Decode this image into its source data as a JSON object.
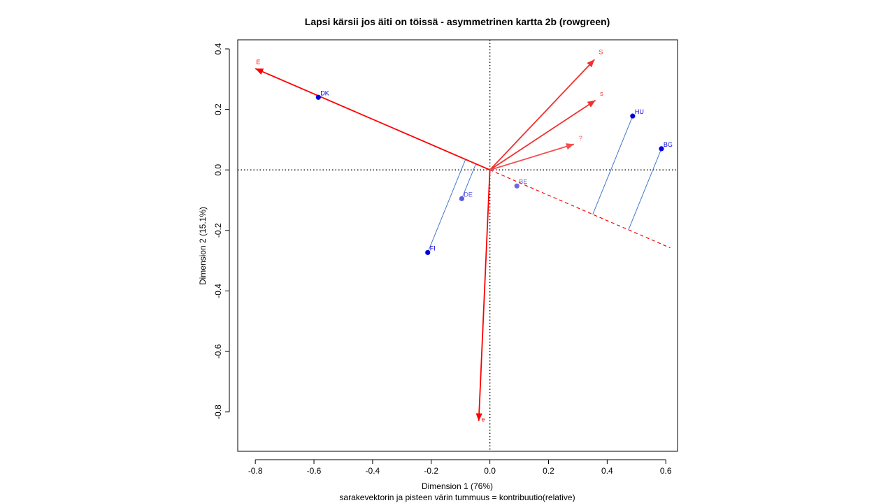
{
  "chart_data": {
    "type": "scatter",
    "title": "Lapsi kärsii jos äiti on töissä - asymmetrinen kartta 2b (rowgreen)",
    "xlabel": "Dimension 1 (76%)",
    "ylabel": "Dimension 2 (15.1%)",
    "subtitle": "sarakevektorin ja pisteen värin tummuus = kontribuutio(relative)",
    "xlim": [
      -0.86,
      0.64
    ],
    "ylim": [
      -0.93,
      0.43
    ],
    "xticks": [
      "-0.8",
      "-0.6",
      "-0.4",
      "-0.2",
      "0.0",
      "0.2",
      "0.4",
      "0.6"
    ],
    "yticks": [
      "0.4",
      "0.2",
      "0.0",
      "-0.2",
      "-0.4",
      "-0.6",
      "-0.8"
    ],
    "xtick_values": [
      -0.8,
      -0.6,
      -0.4,
      -0.2,
      0.0,
      0.2,
      0.4,
      0.6
    ],
    "ytick_values": [
      0.4,
      0.2,
      0.0,
      -0.2,
      -0.4,
      -0.6,
      -0.8
    ],
    "reference_lines": {
      "x": 0,
      "y": 0,
      "style": "dotted"
    },
    "row_points": [
      {
        "label": "DK",
        "x": -0.585,
        "y": 0.24,
        "color": "#0000dd"
      },
      {
        "label": "HU",
        "x": 0.487,
        "y": 0.178,
        "color": "#0000dd"
      },
      {
        "label": "BG",
        "x": 0.585,
        "y": 0.07,
        "color": "#0000dd"
      },
      {
        "label": "BE",
        "x": 0.092,
        "y": -0.053,
        "color": "#6a6ae0"
      },
      {
        "label": "DE",
        "x": -0.096,
        "y": -0.095,
        "color": "#5a5ae0"
      },
      {
        "label": "FI",
        "x": -0.212,
        "y": -0.273,
        "color": "#0000dd"
      }
    ],
    "column_arrows": [
      {
        "label": "E",
        "x": -0.8,
        "y": 0.335,
        "color": "#ff0000"
      },
      {
        "label": "S",
        "x": 0.357,
        "y": 0.365,
        "color": "#f03030"
      },
      {
        "label": "s",
        "x": 0.36,
        "y": 0.23,
        "color": "#f03030"
      },
      {
        "label": "?",
        "x": 0.287,
        "y": 0.085,
        "color": "#f05050"
      },
      {
        "label": "e",
        "x": -0.038,
        "y": -0.83,
        "color": "#ff0000"
      }
    ],
    "projection_axis": {
      "from_arrow": "E",
      "extend_to_x": 0.615
    },
    "projections": [
      "HU",
      "BG",
      "DE",
      "FI"
    ],
    "projection_color": "#4477cc"
  }
}
